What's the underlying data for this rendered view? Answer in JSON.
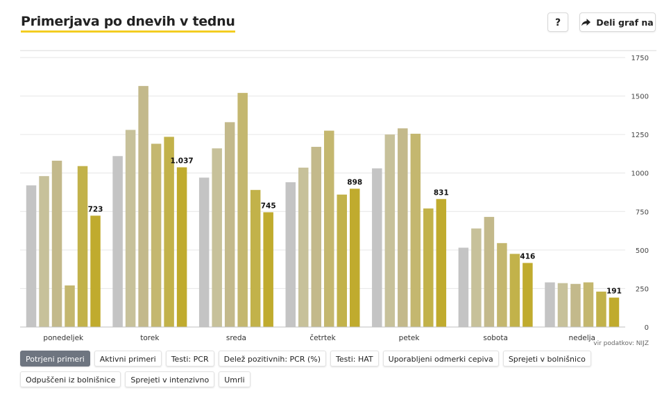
{
  "header": {
    "title": "Primerjava po dnevih v tednu",
    "help_label": "?",
    "share_label": "Deli graf na"
  },
  "source": "vir podatkov: NIJZ",
  "filters": [
    {
      "label": "Potrjeni primeri",
      "active": true
    },
    {
      "label": "Aktivni primeri",
      "active": false
    },
    {
      "label": "Testi: PCR",
      "active": false
    },
    {
      "label": "Delež pozitivnih: PCR (%)",
      "active": false
    },
    {
      "label": "Testi: HAT",
      "active": false
    },
    {
      "label": "Uporabljeni odmerki cepiva",
      "active": false
    },
    {
      "label": "Sprejeti v bolnišnico",
      "active": false
    },
    {
      "label": "Odpuščeni iz bolnišnice",
      "active": false
    },
    {
      "label": "Sprejeti v intenzivno",
      "active": false
    },
    {
      "label": "Umrli",
      "active": false
    }
  ],
  "colors": {
    "series": [
      "#c4c4c4",
      "#c7c19a",
      "#c3b98b",
      "#c4b76f",
      "#c2b24a",
      "#c0ab2e"
    ],
    "grid": "#e6e6e6",
    "accent": "#f3cd21"
  },
  "chart_data": {
    "type": "bar",
    "categories": [
      "ponedeljek",
      "torek",
      "sreda",
      "četrtek",
      "petek",
      "sobota",
      "nedelja"
    ],
    "series": [
      {
        "values": [
          920,
          1110,
          970,
          940,
          1030,
          515,
          290
        ]
      },
      {
        "values": [
          980,
          1280,
          1160,
          1035,
          1250,
          640,
          285
        ]
      },
      {
        "values": [
          1080,
          1565,
          1330,
          1170,
          1290,
          715,
          280
        ]
      },
      {
        "values": [
          270,
          1190,
          1520,
          1275,
          1255,
          545,
          290
        ]
      },
      {
        "values": [
          1045,
          1235,
          890,
          860,
          770,
          475,
          230
        ]
      },
      {
        "values": [
          723,
          1037,
          745,
          898,
          831,
          416,
          191
        ]
      }
    ],
    "data_labels": [
      "723",
      "1.037",
      "745",
      "898",
      "831",
      "416",
      "191"
    ],
    "y_ticks": [
      "0",
      "250",
      "500",
      "750",
      "1000",
      "1250",
      "1500",
      "1750"
    ],
    "ylim": [
      0,
      1750
    ],
    "grid": true,
    "y_axis_position": "right"
  }
}
